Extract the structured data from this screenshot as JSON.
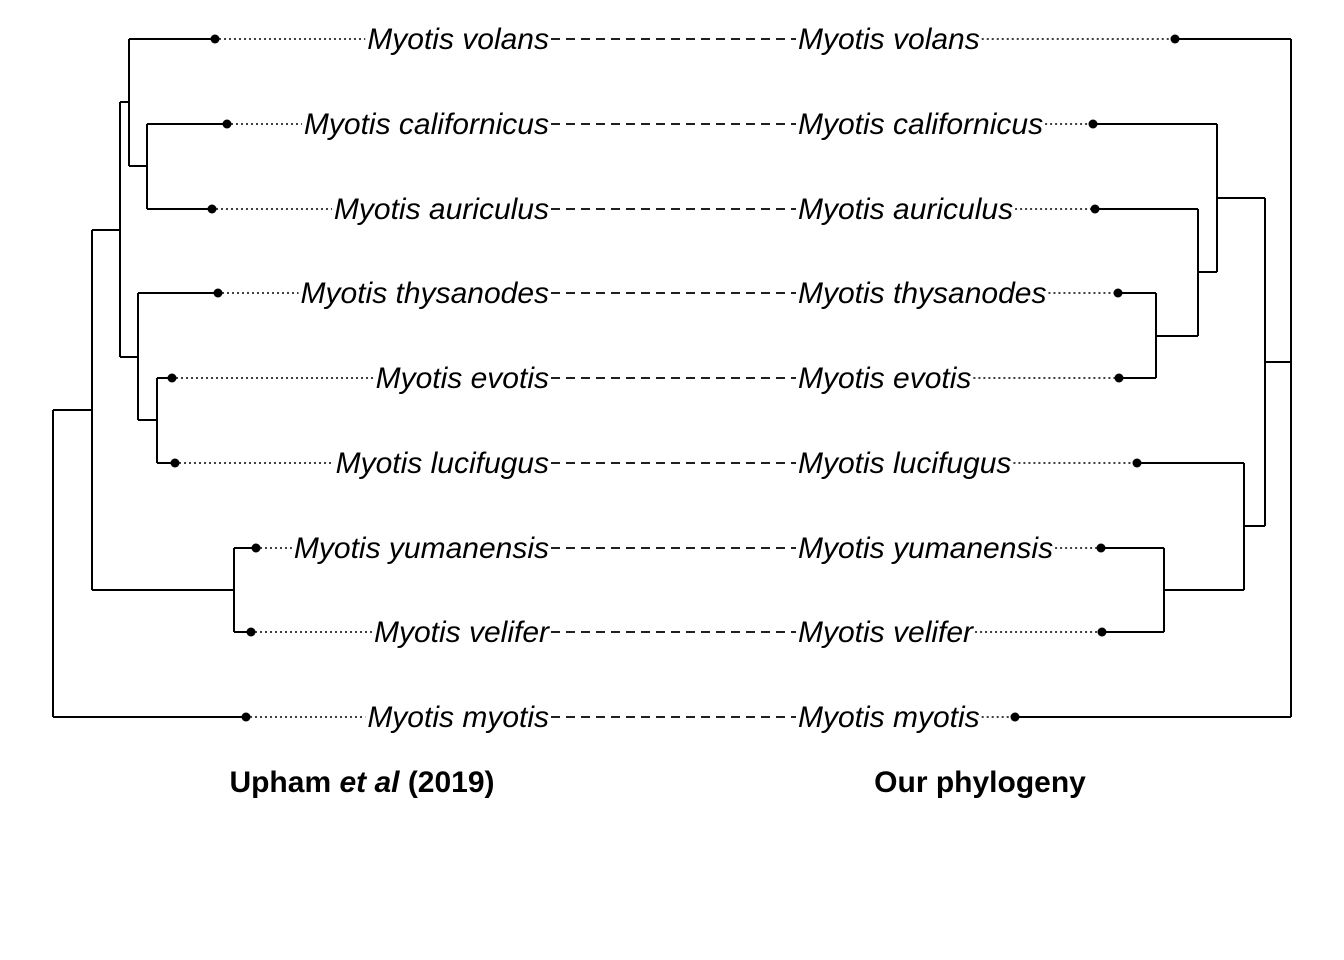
{
  "taxa": [
    "Myotis volans",
    "Myotis californicus",
    "Myotis auriculus",
    "Myotis thysanodes",
    "Myotis evotis",
    "Myotis lucifugus",
    "Myotis yumanensis",
    "Myotis velifer",
    "Myotis myotis"
  ],
  "left_tree": {
    "caption_before": "Upham ",
    "caption_italic": "et al",
    "caption_after": " (2019)"
  },
  "right_tree": {
    "caption": "Our phylogeny"
  }
}
